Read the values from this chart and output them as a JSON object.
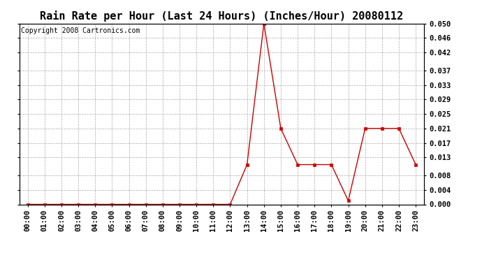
{
  "title": "Rain Rate per Hour (Last 24 Hours) (Inches/Hour) 20080112",
  "copyright": "Copyright 2008 Cartronics.com",
  "x_labels": [
    "00:00",
    "01:00",
    "02:00",
    "03:00",
    "04:00",
    "05:00",
    "06:00",
    "07:00",
    "08:00",
    "09:00",
    "10:00",
    "11:00",
    "12:00",
    "13:00",
    "14:00",
    "15:00",
    "16:00",
    "17:00",
    "18:00",
    "19:00",
    "20:00",
    "21:00",
    "22:00",
    "23:00"
  ],
  "y_values": [
    0.0,
    0.0,
    0.0,
    0.0,
    0.0,
    0.0,
    0.0,
    0.0,
    0.0,
    0.0,
    0.0,
    0.0,
    0.0,
    0.011,
    0.05,
    0.021,
    0.011,
    0.011,
    0.011,
    0.001,
    0.021,
    0.021,
    0.021,
    0.011
  ],
  "y_ticks": [
    0.0,
    0.004,
    0.008,
    0.013,
    0.017,
    0.021,
    0.025,
    0.029,
    0.033,
    0.037,
    0.042,
    0.046,
    0.05
  ],
  "line_color": "#cc0000",
  "marker": "s",
  "marker_size": 2.5,
  "background_color": "#ffffff",
  "grid_color": "#aaaaaa",
  "title_fontsize": 11,
  "copyright_fontsize": 7,
  "tick_fontsize": 7.5,
  "ylim": [
    0.0,
    0.05
  ],
  "xlim": [
    -0.5,
    23.5
  ]
}
